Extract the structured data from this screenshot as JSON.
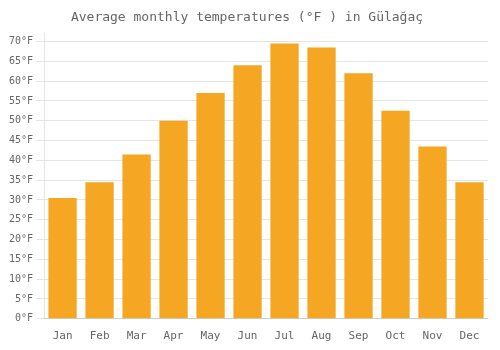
{
  "chart_data": {
    "type": "bar",
    "title": "Average monthly temperatures (°F ) in Gülağaç",
    "categories": [
      "Jan",
      "Feb",
      "Mar",
      "Apr",
      "May",
      "Jun",
      "Jul",
      "Aug",
      "Sep",
      "Oct",
      "Nov",
      "Dec"
    ],
    "values": [
      30.5,
      34.5,
      41.5,
      50.0,
      57.0,
      64.0,
      69.5,
      68.5,
      62.0,
      52.5,
      43.5,
      34.5
    ],
    "color": "#F5A623",
    "ylim": [
      0,
      72
    ],
    "yticks": [
      {
        "value": 0,
        "label": "0°F"
      },
      {
        "value": 5,
        "label": "5°F"
      },
      {
        "value": 10,
        "label": "10°F"
      },
      {
        "value": 15,
        "label": "15°F"
      },
      {
        "value": 20,
        "label": "20°F"
      },
      {
        "value": 25,
        "label": "25°F"
      },
      {
        "value": 30,
        "label": "30°F"
      },
      {
        "value": 35,
        "label": "35°F"
      },
      {
        "value": 40,
        "label": "40°F"
      },
      {
        "value": 45,
        "label": "45°F"
      },
      {
        "value": 50,
        "label": "50°F"
      },
      {
        "value": 55,
        "label": "55°F"
      },
      {
        "value": 60,
        "label": "60°F"
      },
      {
        "value": 65,
        "label": "65°F"
      },
      {
        "value": 70,
        "label": "70°F"
      }
    ],
    "grid": true
  }
}
